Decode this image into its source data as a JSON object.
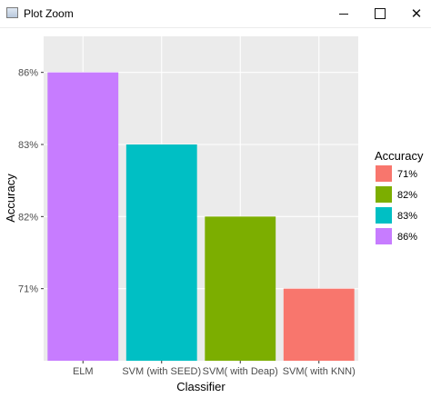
{
  "window": {
    "title": "Plot Zoom",
    "icon": "plot-window-icon",
    "controls": {
      "minimize": "minimize-icon",
      "maximize": "maximize-icon",
      "close": "close-icon"
    }
  },
  "chart_data": {
    "type": "bar",
    "title": "",
    "xlabel": "Classifier",
    "ylabel": "Accuracy",
    "categories": [
      "ELM",
      "SVM (with SEED)",
      "SVM( with Deap)",
      "SVM( with KNN)"
    ],
    "values": [
      86,
      83,
      82,
      71
    ],
    "value_labels": [
      "86%",
      "83%",
      "82%",
      "71%"
    ],
    "y_axis_type": "discrete-ordered",
    "y_ticks": [
      "71%",
      "82%",
      "83%",
      "86%"
    ],
    "grid": true,
    "panel_background": "#ebebeb",
    "legend": {
      "title": "Accuracy",
      "placement": "right",
      "entries": [
        {
          "label": "71%",
          "color": "#f8766d"
        },
        {
          "label": "82%",
          "color": "#7cae00"
        },
        {
          "label": "83%",
          "color": "#00bfc4"
        },
        {
          "label": "86%",
          "color": "#c77cff"
        }
      ]
    },
    "bar_colors": [
      "#c77cff",
      "#00bfc4",
      "#7cae00",
      "#f8766d"
    ]
  }
}
